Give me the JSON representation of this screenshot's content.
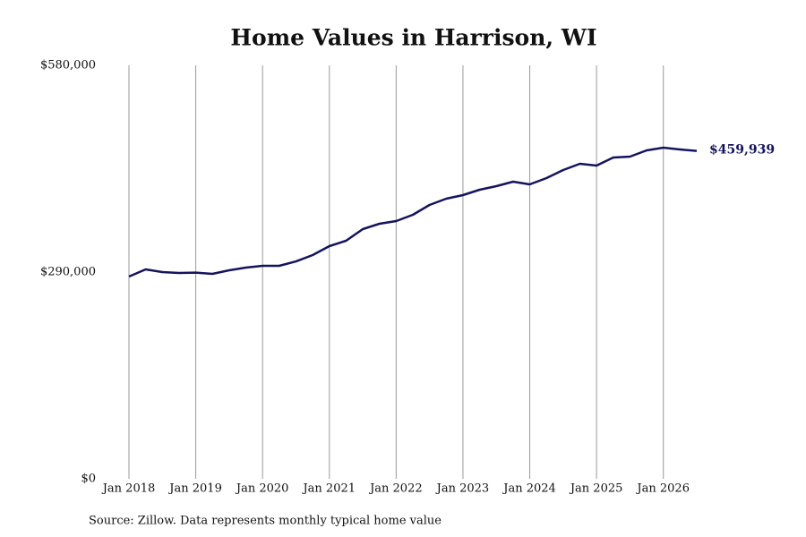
{
  "chart_data": {
    "type": "line",
    "title": "Home Values in Harrison, WI",
    "source": "Source: Zillow. Data represents monthly typical home value",
    "x": [
      "2018-01",
      "2018-04",
      "2018-07",
      "2018-10",
      "2019-01",
      "2019-04",
      "2019-07",
      "2019-10",
      "2020-01",
      "2020-04",
      "2020-07",
      "2020-10",
      "2021-01",
      "2021-04",
      "2021-07",
      "2021-10",
      "2022-01",
      "2022-04",
      "2022-07",
      "2022-10",
      "2023-01",
      "2023-04",
      "2023-07",
      "2023-10",
      "2024-01",
      "2024-04",
      "2024-07",
      "2024-10",
      "2025-01",
      "2025-04",
      "2025-07",
      "2025-10",
      "2026-01",
      "2026-04",
      "2026-07"
    ],
    "series": [
      {
        "name": "Harrison, WI",
        "color": "#14145e",
        "values": [
          283700,
          293800,
          290000,
          288700,
          289300,
          287500,
          292500,
          296300,
          298800,
          298800,
          305000,
          313800,
          326400,
          333900,
          350300,
          357800,
          361600,
          370300,
          384200,
          393000,
          398000,
          405500,
          410500,
          416800,
          413000,
          421800,
          433100,
          441900,
          439400,
          450700,
          452000,
          460700,
          464500,
          462000,
          459939
        ],
        "value_labels": [
          null,
          null,
          null,
          null,
          null,
          null,
          null,
          null,
          null,
          null,
          null,
          null,
          null,
          null,
          null,
          null,
          null,
          null,
          null,
          null,
          null,
          null,
          null,
          null,
          null,
          null,
          null,
          null,
          null,
          null,
          null,
          null,
          null,
          null,
          "$459,939"
        ]
      }
    ],
    "xlim": [
      "2018-01",
      "2026-07"
    ],
    "xticks": [
      {
        "value": "2018-01",
        "label": "Jan 2018"
      },
      {
        "value": "2019-01",
        "label": "Jan 2019"
      },
      {
        "value": "2020-01",
        "label": "Jan 2020"
      },
      {
        "value": "2021-01",
        "label": "Jan 2021"
      },
      {
        "value": "2022-01",
        "label": "Jan 2022"
      },
      {
        "value": "2023-01",
        "label": "Jan 2023"
      },
      {
        "value": "2024-01",
        "label": "Jan 2024"
      },
      {
        "value": "2025-01",
        "label": "Jan 2025"
      },
      {
        "value": "2026-01",
        "label": "Jan 2026"
      }
    ],
    "ylim": [
      0,
      580000
    ],
    "yticks": [
      {
        "value": 0,
        "label": "$0"
      },
      {
        "value": 290000,
        "label": "$290,000"
      },
      {
        "value": 580000,
        "label": "$580,000"
      }
    ],
    "grid": "x"
  }
}
